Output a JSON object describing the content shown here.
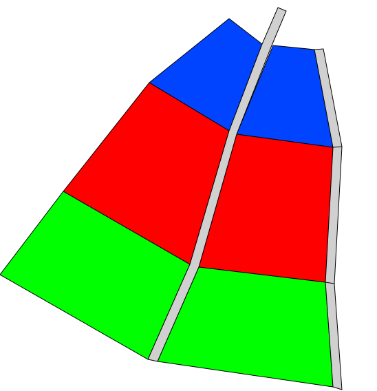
{
  "colors": {
    "background": "#ffffff",
    "blue": "#0044ff",
    "red": "#ff0000",
    "green": "#00ff00",
    "divider": "#d0d0d0",
    "outline": "#000000"
  },
  "bands": [
    {
      "name": "top",
      "color": "blue"
    },
    {
      "name": "middle",
      "color": "red"
    },
    {
      "name": "bottom",
      "color": "green"
    }
  ]
}
